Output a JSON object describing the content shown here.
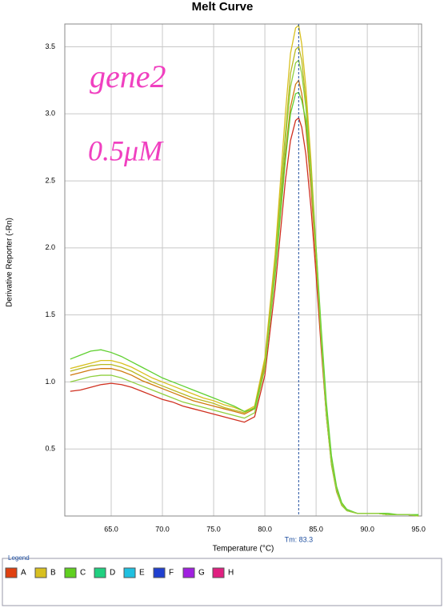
{
  "chart_data": {
    "type": "line",
    "title": "Melt Curve",
    "xlabel": "Temperature (°C)",
    "ylabel": "Derivative Reporter (-Rn)",
    "xlim": [
      60.47,
      95.3
    ],
    "ylim": [
      0,
      3.67
    ],
    "xticks": [
      {
        "value": 65,
        "label": "65.0"
      },
      {
        "value": 70,
        "label": "70.0"
      },
      {
        "value": 75,
        "label": "75.0"
      },
      {
        "value": 80,
        "label": "80.0"
      },
      {
        "value": 85,
        "label": "85.0"
      },
      {
        "value": 90,
        "label": "90.0"
      },
      {
        "value": 95,
        "label": "95.0"
      }
    ],
    "yticks": [
      0.5,
      {
        "value": 1,
        "label": "1.0"
      },
      1.5,
      {
        "value": 2,
        "label": "2.0"
      },
      2.5,
      {
        "value": 3,
        "label": "3.0"
      },
      3.5
    ],
    "grid": true,
    "tm": {
      "value": 83.3,
      "label": "Tm: 83.3",
      "color": "#2050a0"
    },
    "annotations": [
      {
        "text": "gene2",
        "color": "#f040c0"
      },
      {
        "text": "0.5μM",
        "color": "#f040c0"
      }
    ],
    "x": [
      61,
      62,
      63,
      64,
      65,
      66,
      67,
      68,
      69,
      70,
      71,
      72,
      73,
      74,
      75,
      76,
      77,
      78,
      79,
      80,
      81,
      82,
      82.5,
      83,
      83.3,
      83.6,
      84,
      84.5,
      85,
      85.5,
      86,
      86.5,
      87,
      87.5,
      88,
      89,
      90,
      91,
      92,
      93,
      94,
      95
    ],
    "series": [
      {
        "color": "#d03020",
        "values": [
          0.93,
          0.94,
          0.96,
          0.98,
          0.99,
          0.98,
          0.96,
          0.93,
          0.9,
          0.87,
          0.85,
          0.82,
          0.8,
          0.78,
          0.76,
          0.74,
          0.72,
          0.7,
          0.74,
          1.05,
          1.7,
          2.5,
          2.8,
          2.95,
          2.97,
          2.9,
          2.7,
          2.3,
          1.8,
          1.25,
          0.75,
          0.4,
          0.2,
          0.09,
          0.04,
          0.02,
          0.02,
          0.02,
          0.01,
          0.01,
          0.01,
          0.0
        ]
      },
      {
        "color": "#d07a10",
        "values": [
          1.05,
          1.07,
          1.09,
          1.1,
          1.1,
          1.08,
          1.05,
          1.01,
          0.98,
          0.95,
          0.92,
          0.89,
          0.86,
          0.84,
          0.82,
          0.8,
          0.78,
          0.76,
          0.8,
          1.12,
          1.85,
          2.7,
          3.05,
          3.22,
          3.25,
          3.15,
          2.9,
          2.45,
          1.9,
          1.3,
          0.75,
          0.38,
          0.18,
          0.08,
          0.04,
          0.02,
          0.02,
          0.02,
          0.01,
          0.01,
          0.01,
          0.0
        ]
      },
      {
        "color": "#d8c020",
        "values": [
          1.1,
          1.12,
          1.14,
          1.16,
          1.16,
          1.14,
          1.11,
          1.07,
          1.03,
          1.0,
          0.97,
          0.94,
          0.91,
          0.88,
          0.86,
          0.83,
          0.81,
          0.78,
          0.82,
          1.18,
          1.95,
          3.0,
          3.45,
          3.64,
          3.66,
          3.52,
          3.2,
          2.65,
          2.0,
          1.35,
          0.78,
          0.4,
          0.19,
          0.09,
          0.04,
          0.02,
          0.02,
          0.02,
          0.01,
          0.01,
          0.01,
          0.0
        ]
      },
      {
        "color": "#b8b820",
        "values": [
          1.08,
          1.1,
          1.12,
          1.13,
          1.13,
          1.11,
          1.08,
          1.04,
          1.0,
          0.97,
          0.94,
          0.91,
          0.88,
          0.86,
          0.84,
          0.81,
          0.79,
          0.77,
          0.81,
          1.15,
          1.9,
          2.85,
          3.3,
          3.48,
          3.5,
          3.4,
          3.1,
          2.6,
          1.98,
          1.33,
          0.76,
          0.39,
          0.19,
          0.08,
          0.04,
          0.02,
          0.02,
          0.02,
          0.01,
          0.01,
          0.01,
          0.0
        ]
      },
      {
        "color": "#60d030",
        "values": [
          1.17,
          1.2,
          1.23,
          1.24,
          1.22,
          1.19,
          1.15,
          1.11,
          1.07,
          1.03,
          1.0,
          0.97,
          0.94,
          0.91,
          0.88,
          0.85,
          0.82,
          0.78,
          0.8,
          1.1,
          1.8,
          2.65,
          3.0,
          3.15,
          3.16,
          3.1,
          2.95,
          2.55,
          2.0,
          1.4,
          0.85,
          0.45,
          0.22,
          0.1,
          0.05,
          0.02,
          0.02,
          0.02,
          0.02,
          0.01,
          0.01,
          0.01
        ]
      },
      {
        "color": "#90d040",
        "values": [
          1.0,
          1.02,
          1.04,
          1.05,
          1.05,
          1.03,
          1.0,
          0.97,
          0.94,
          0.91,
          0.88,
          0.85,
          0.83,
          0.81,
          0.79,
          0.77,
          0.75,
          0.73,
          0.77,
          1.1,
          1.85,
          2.8,
          3.2,
          3.38,
          3.4,
          3.3,
          3.05,
          2.55,
          1.95,
          1.32,
          0.76,
          0.39,
          0.19,
          0.08,
          0.04,
          0.02,
          0.02,
          0.02,
          0.01,
          0.01,
          0.01,
          0.0
        ]
      }
    ],
    "legend": {
      "title": "Legend",
      "items": [
        {
          "name": "A",
          "color": "#e04010"
        },
        {
          "name": "B",
          "color": "#d8c020"
        },
        {
          "name": "C",
          "color": "#60d020"
        },
        {
          "name": "D",
          "color": "#20d080"
        },
        {
          "name": "E",
          "color": "#20c0e0"
        },
        {
          "name": "F",
          "color": "#2040d0"
        },
        {
          "name": "G",
          "color": "#a020e0"
        },
        {
          "name": "H",
          "color": "#e02080"
        }
      ]
    }
  }
}
